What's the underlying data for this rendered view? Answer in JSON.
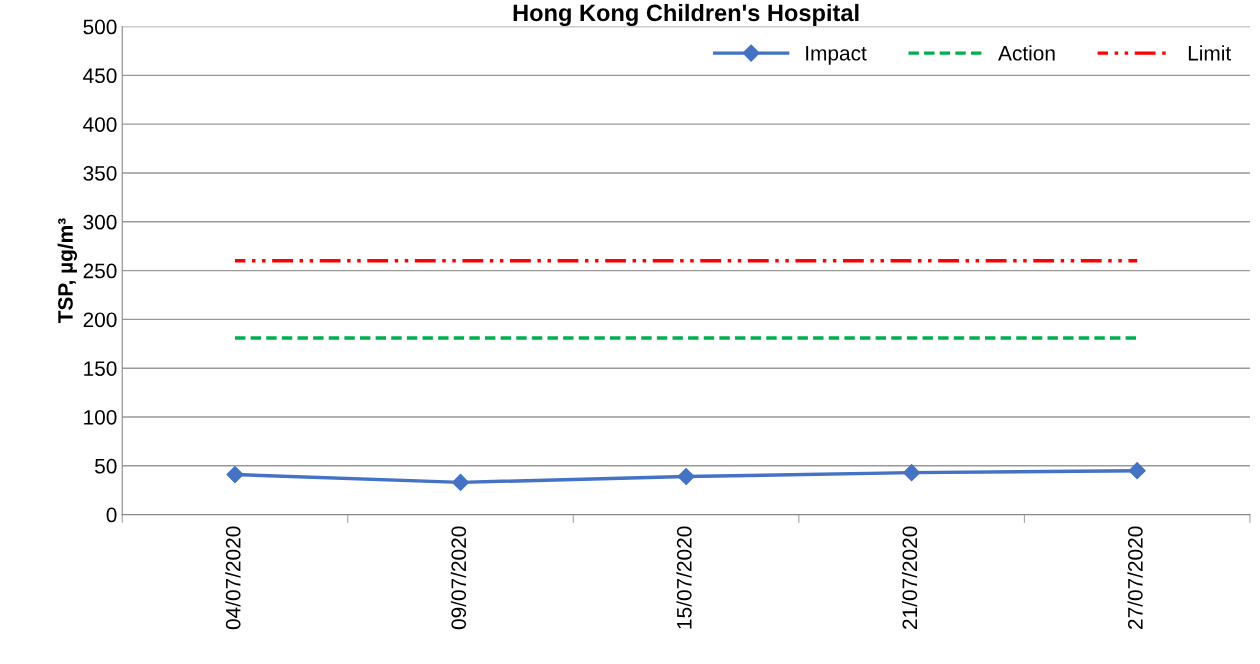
{
  "chart_data": {
    "type": "line",
    "title": "Hong Kong Children's Hospital",
    "ylabel": "TSP, µg/m³",
    "categories": [
      "04/07/2020",
      "09/07/2020",
      "15/07/2020",
      "21/07/2020",
      "27/07/2020"
    ],
    "series": [
      {
        "name": "Impact",
        "color": "#4472c4",
        "values": [
          41,
          33,
          39,
          43,
          45
        ],
        "marker": "diamond",
        "line_style": "solid"
      },
      {
        "name": "Action",
        "color": "#00b050",
        "values": [
          181,
          181,
          181,
          181,
          181
        ],
        "marker": "none",
        "line_style": "dashed"
      },
      {
        "name": "Limit",
        "color": "#ff0000",
        "values": [
          260,
          260,
          260,
          260,
          260
        ],
        "marker": "none",
        "line_style": "dashdotdot"
      }
    ],
    "ylim": [
      0,
      500
    ],
    "yticks": [
      0,
      50,
      100,
      150,
      200,
      250,
      300,
      350,
      400,
      450,
      500
    ],
    "grid": "y",
    "legend": "top right"
  }
}
